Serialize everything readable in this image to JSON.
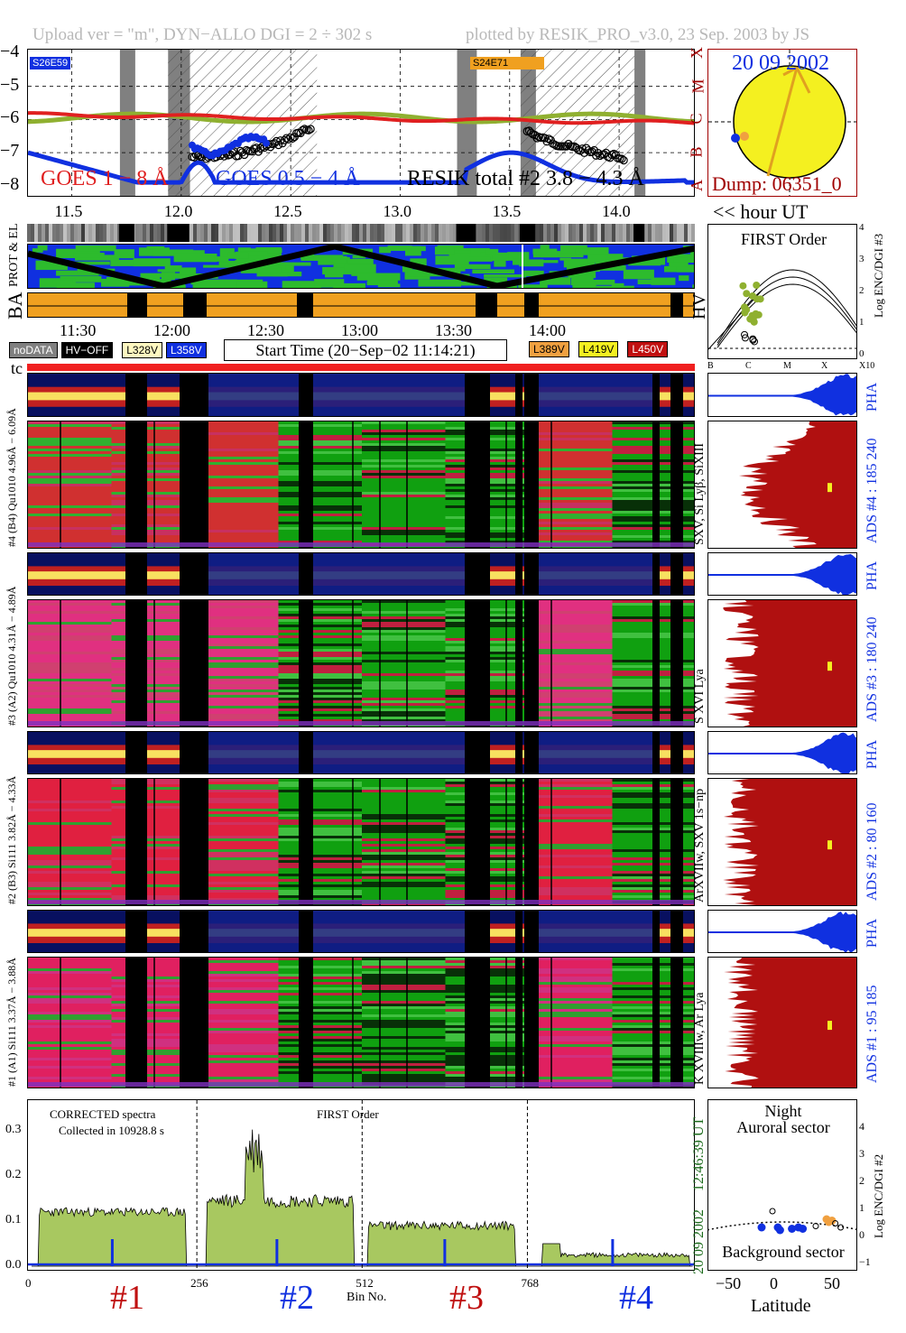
{
  "header": {
    "left": "Upload ver = \"m\", DYN−ALLO DGI =   2 ÷ 302 s",
    "right": "plotted by RESIK_PRO_v3.0, 23 Sep. 2003 by JS"
  },
  "goes_panel": {
    "yticks": [
      "−4",
      "−5",
      "−6",
      "−7",
      "−8"
    ],
    "class_letters": [
      "X",
      "M",
      "C",
      "B",
      "A"
    ],
    "xticks": [
      "11.5",
      "12.0",
      "12.5",
      "13.0",
      "13.5",
      "14.0"
    ],
    "region_left": "S26E59",
    "region_right": "S24E71",
    "legend_goes1": "GOES 1 − 8 Å",
    "legend_goes2": "GOES 0.5 − 4 Å",
    "legend_resik": "RESIK total #2  3.8 − 4.3 Å",
    "colors": {
      "goes1": "#e02020",
      "goes2": "#1030e0",
      "resik": "#8fb030"
    }
  },
  "sun_panel": {
    "date": "20 09 2002",
    "dump": "Dump: 06351_0",
    "hour_label": "<< hour UT"
  },
  "orbit_panel": {
    "prot_label": "PROT & EL",
    "ba_label": "BA",
    "hv_label": "HV",
    "time_ticks": [
      "11:30",
      "12:00",
      "12:30",
      "13:00",
      "13:30",
      "14:00"
    ]
  },
  "first_order_panel": {
    "title": "FIRST Order",
    "ylabel": "Log ENC/DGI #3",
    "yticks": [
      "4",
      "3",
      "2",
      "1",
      "0"
    ],
    "xticks": [
      "B",
      "C",
      "M",
      "X",
      "X10"
    ]
  },
  "legend_bar": {
    "nodata": "noDATA",
    "hvoff": "HV−OFF",
    "v1": "L328V",
    "v2": "L358V",
    "start_time": "Start Time (20−Sep−02 11:14:21)",
    "v3": "L389V",
    "v4": "L419V",
    "v5": "L450V"
  },
  "tc_label": "tc",
  "channels": [
    {
      "pha_label": "#4 (B4) Qu1010 4.96Å − 6.09Å",
      "ads": "ADS #4 :   185 240",
      "lines": "SXV, Si Lyβ, SiXIII",
      "pha": "PHA"
    },
    {
      "pha_label": "#3 (A2) Qu1010 4.31Å − 4.89Å",
      "ads": "ADS #3 :   180 240",
      "lines": "S XVI Lya",
      "pha": "PHA"
    },
    {
      "pha_label": "#2 (B3) Si111 3.82Å − 4.33Å",
      "ads": "ADS #2 :   80 160",
      "lines": "ArXVIIw, SXV 1s−np",
      "pha": "PHA"
    },
    {
      "pha_label": "#1 (A1) Si111 3.37Å − 3.88Å",
      "ads": "ADS #1 :   95 185",
      "lines": "K XVIIIw, Ar Lya",
      "pha": "PHA"
    }
  ],
  "spectrum_panel": {
    "note1": "CORRECTED spectra",
    "note2": "Collected in 10928.8 s",
    "order": "FIRST Order",
    "yticks": [
      "0.3",
      "0.2",
      "0.1",
      "0.0"
    ],
    "xticks": [
      "0",
      "256",
      "512",
      "768"
    ],
    "xlabel": "Bin No.",
    "time_utc": "12:46:39 UT",
    "date": "20 09 2002",
    "section_labels": [
      "#1",
      "#2",
      "#3",
      "#4"
    ]
  },
  "night_panel": {
    "title1": "Night",
    "title2": "Auroral sector",
    "bottom": "Background sector",
    "ylabel": "Log ENC/DGI #2",
    "yticks": [
      "4",
      "3",
      "2",
      "1",
      "0",
      "−1"
    ],
    "xticks": [
      "−50",
      "0",
      "50"
    ],
    "xlabel": "Latitude"
  }
}
